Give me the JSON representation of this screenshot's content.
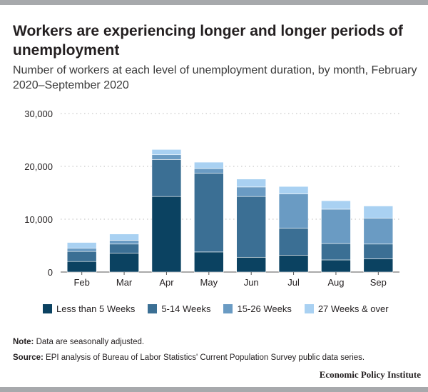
{
  "title": "Workers are experiencing longer and longer periods of unemployment",
  "subtitle": "Number of workers at each level of unemployment duration, by month, February 2020–September 2020",
  "note_label": "Note:",
  "note_text": " Data are seasonally adjusted.",
  "source_label": "Source:",
  "source_text": " EPI analysis of Bureau of Labor Statistics' Current Population Survey public data series.",
  "brand": "Economic Policy Institute",
  "colors": {
    "less_than_5": "#0b4261",
    "w5_14": "#3b6f94",
    "w15_26": "#6a9bc3",
    "w27_over": "#a9d1f2",
    "grid": "#c9c9c9",
    "axis": "#555555"
  },
  "legend": [
    {
      "label": "Less than 5 Weeks",
      "color": "#0b4261"
    },
    {
      "label": "5-14 Weeks",
      "color": "#3b6f94"
    },
    {
      "label": "15-26 Weeks",
      "color": "#6a9bc3"
    },
    {
      "label": "27 Weeks & over",
      "color": "#a9d1f2"
    }
  ],
  "chart_data": {
    "type": "bar",
    "stacked": true,
    "categories": [
      "Feb",
      "Mar",
      "Apr",
      "May",
      "Jun",
      "Jul",
      "Aug",
      "Sep"
    ],
    "series": [
      {
        "name": "Less than 5 Weeks",
        "color": "#0b4261",
        "values": [
          2000,
          3600,
          14300,
          3800,
          2800,
          3200,
          2300,
          2500
        ]
      },
      {
        "name": "5-14 Weeks",
        "color": "#3b6f94",
        "values": [
          1900,
          1700,
          7000,
          14900,
          11500,
          5100,
          3100,
          2800
        ]
      },
      {
        "name": "15-26 Weeks",
        "color": "#6a9bc3",
        "values": [
          600,
          700,
          900,
          900,
          1800,
          6500,
          6500,
          4900
        ]
      },
      {
        "name": "27 Weeks & over",
        "color": "#a9d1f2",
        "values": [
          1100,
          1200,
          1000,
          1200,
          1500,
          1400,
          1600,
          2300
        ]
      }
    ],
    "yticks": [
      "0",
      "10,000",
      "20,000",
      "30,000"
    ],
    "ytick_values": [
      0,
      10000,
      20000,
      30000
    ],
    "ylim": [
      0,
      30000
    ],
    "grid": true,
    "legend_position": "bottom"
  }
}
